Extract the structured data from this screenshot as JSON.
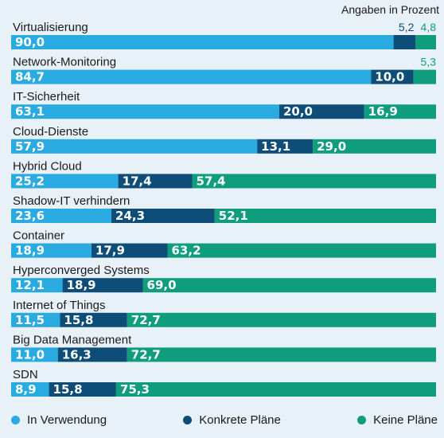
{
  "chart_data": {
    "type": "bar",
    "stacked": true,
    "orientation": "horizontal",
    "unit_note": "Angaben in Prozent",
    "categories": [
      "Virtualisierung",
      "Network-Monitoring",
      "IT-Sicherheit",
      "Cloud-Dienste",
      "Hybrid Cloud",
      "Shadow-IT verhindern",
      "Container",
      "Hyperconverged Systems",
      "Internet of Things",
      "Big Data Management",
      "SDN"
    ],
    "series": [
      {
        "name": "In Verwendung",
        "color": "#29abe2",
        "values": [
          90.0,
          84.7,
          63.1,
          57.9,
          25.2,
          23.6,
          18.9,
          12.1,
          11.5,
          11.0,
          8.9
        ],
        "labels": [
          "90,0",
          "84,7",
          "63,1",
          "57,9",
          "25,2",
          "23,6",
          "18,9",
          "12,1",
          "11,5",
          "11,0",
          "8,9"
        ]
      },
      {
        "name": "Konkrete Pläne",
        "color": "#0e4d77",
        "values": [
          5.2,
          10.0,
          20.0,
          13.1,
          17.4,
          24.3,
          17.9,
          18.9,
          15.8,
          16.3,
          15.8
        ],
        "labels": [
          "5,2",
          "10,0",
          "20,0",
          "13,1",
          "17,4",
          "24,3",
          "17,9",
          "18,9",
          "15,8",
          "16,3",
          "15,8"
        ]
      },
      {
        "name": "Keine Pläne",
        "color": "#0f9d7e",
        "values": [
          4.8,
          5.3,
          16.9,
          29.0,
          57.4,
          52.1,
          63.2,
          69.0,
          72.7,
          72.7,
          75.3
        ],
        "labels": [
          "4,8",
          "5,3",
          "16,9",
          "29,0",
          "57,4",
          "52,1",
          "63,2",
          "69,0",
          "72,7",
          "72,7",
          "75,3"
        ]
      }
    ],
    "xlim": [
      0,
      100
    ],
    "legend_position": "bottom",
    "grid": false
  }
}
